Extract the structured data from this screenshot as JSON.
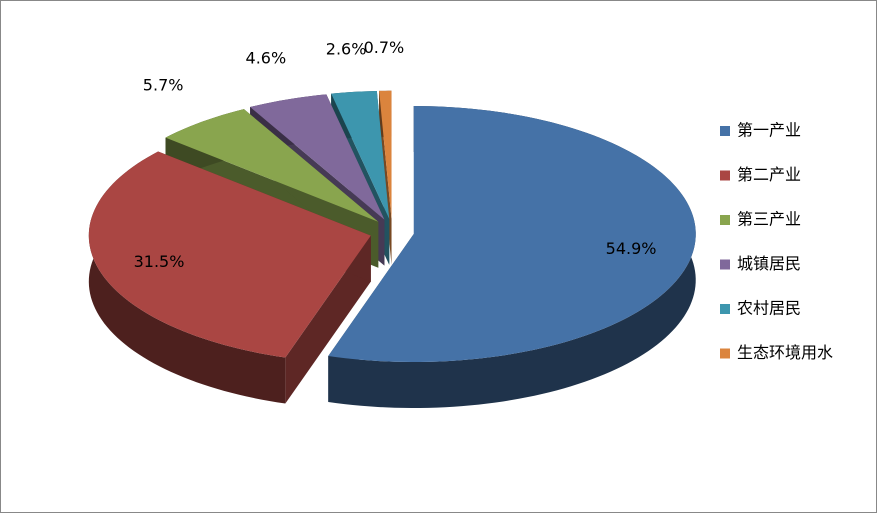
{
  "chart_data": {
    "type": "pie3d",
    "categories": [
      "第一产业",
      "第二产业",
      "第三产业",
      "城镇居民",
      "农村居民",
      "生态环境用水"
    ],
    "values": [
      54.9,
      31.5,
      5.7,
      4.6,
      2.6,
      0.7
    ],
    "value_labels": [
      "54.9%",
      "31.5%",
      "5.7%",
      "4.6%",
      "2.6%",
      "0.7%"
    ],
    "colors": [
      "#4572a7",
      "#aa4643",
      "#89a54e",
      "#80699b",
      "#3d96ae",
      "#db843d"
    ],
    "legend": "right"
  }
}
